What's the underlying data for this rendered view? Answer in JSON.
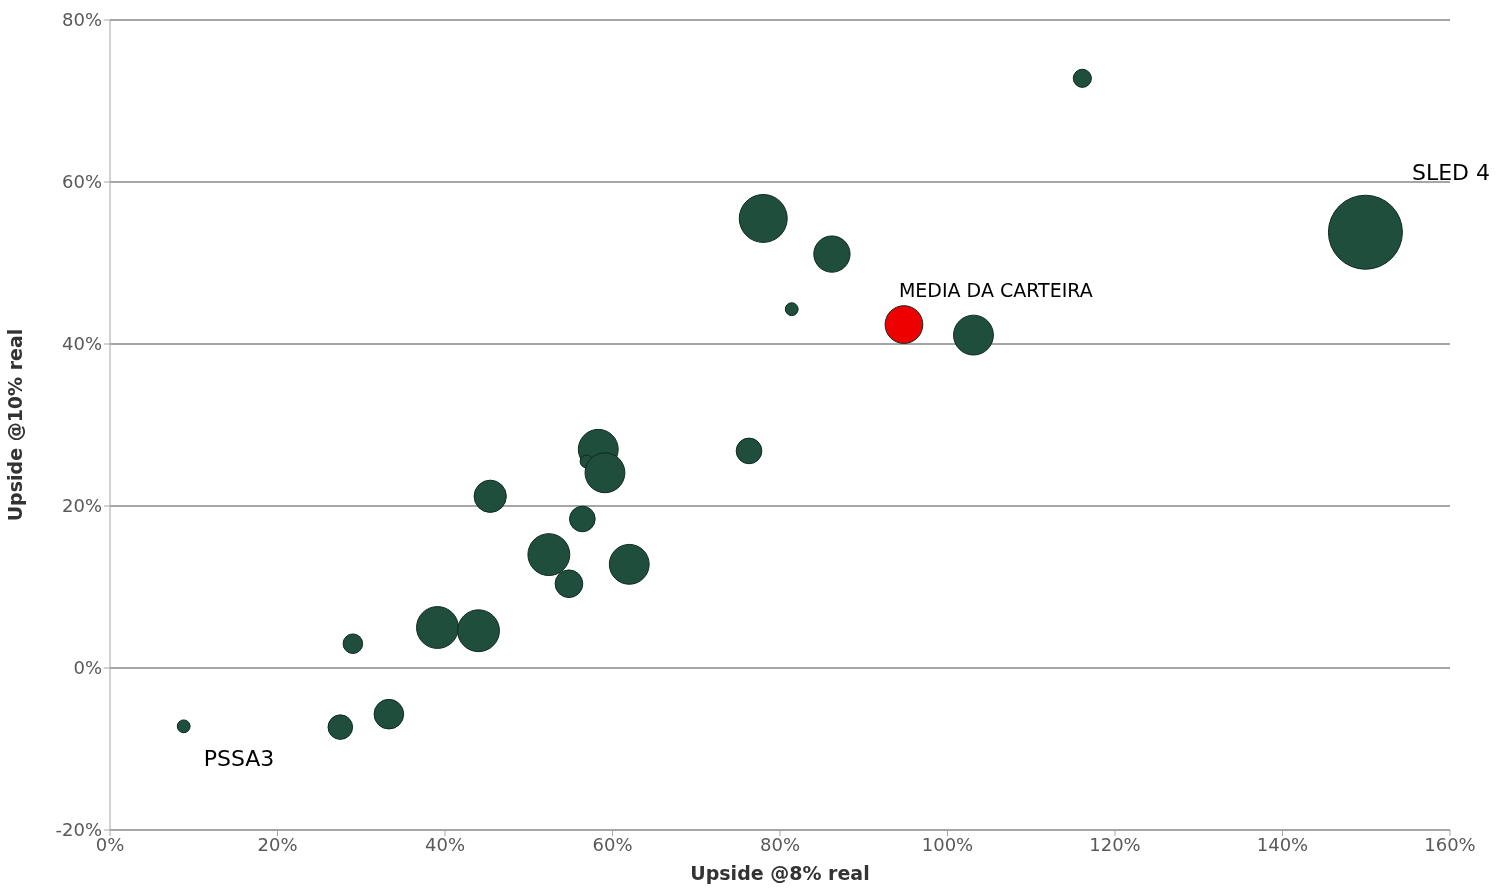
{
  "chart_data": {
    "type": "bubble",
    "xlabel": "Upside @8% real",
    "ylabel": "Upside @10% real",
    "x": [
      116.1,
      78.0,
      86.2,
      81.4,
      94.8,
      103.1,
      149.9,
      58.3,
      56.9,
      59.1,
      76.3,
      45.4,
      56.4,
      52.4,
      62.0,
      54.8,
      39.1,
      44.0,
      29.0,
      8.8,
      27.5,
      33.3
    ],
    "values": [
      72.8,
      55.5,
      51.1,
      44.3,
      42.4,
      41.1,
      53.8,
      27.0,
      25.5,
      24.1,
      26.8,
      21.2,
      18.4,
      14.0,
      12.8,
      10.4,
      5.0,
      4.6,
      3.0,
      -7.2,
      -7.3,
      -5.7
    ],
    "sizes": [
      0.06,
      0.42,
      0.24,
      0.03,
      0.26,
      0.29,
      1,
      0.29,
      0.03,
      0.29,
      0.12,
      0.19,
      0.12,
      0.32,
      0.29,
      0.14,
      0.32,
      0.32,
      0.07,
      0.03,
      0.11,
      0.16
    ],
    "colors": [
      "#1f4e3d",
      "#1f4e3d",
      "#1f4e3d",
      "#1f4e3d",
      "#ee0000",
      "#1f4e3d",
      "#1f4e3d",
      "#1f4e3d",
      "#1f4e3d",
      "#1f4e3d",
      "#1f4e3d",
      "#1f4e3d",
      "#1f4e3d",
      "#1f4e3d",
      "#1f4e3d",
      "#1f4e3d",
      "#1f4e3d",
      "#1f4e3d",
      "#1f4e3d",
      "#1f4e3d",
      "#1f4e3d",
      "#1f4e3d"
    ],
    "xlim": [
      0,
      160
    ],
    "xticks": [
      {
        "value": 0,
        "label": "0%"
      },
      {
        "value": 20,
        "label": "20%"
      },
      {
        "value": 40,
        "label": "40%"
      },
      {
        "value": 60,
        "label": "60%"
      },
      {
        "value": 80,
        "label": "80%"
      },
      {
        "value": 100,
        "label": "100%"
      },
      {
        "value": 120,
        "label": "120%"
      },
      {
        "value": 140,
        "label": "140%"
      },
      {
        "value": 160,
        "label": "160%"
      }
    ],
    "ylim": [
      -20,
      80
    ],
    "yticks": [
      {
        "value": -20,
        "label": "-20%"
      },
      {
        "value": 0,
        "label": "0%"
      },
      {
        "value": 20,
        "label": "20%"
      },
      {
        "value": 40,
        "label": "40%"
      },
      {
        "value": 60,
        "label": "60%"
      },
      {
        "value": 80,
        "label": "80%"
      }
    ],
    "grid": "y",
    "annotations": [
      {
        "text": "MEDIA DA CARTEIRA",
        "x": 94.8,
        "y": 42.4
      },
      "SLED 4",
      {
        "text": "PSSA3",
        "x": 8.8,
        "y": -7.2
      }
    ]
  }
}
